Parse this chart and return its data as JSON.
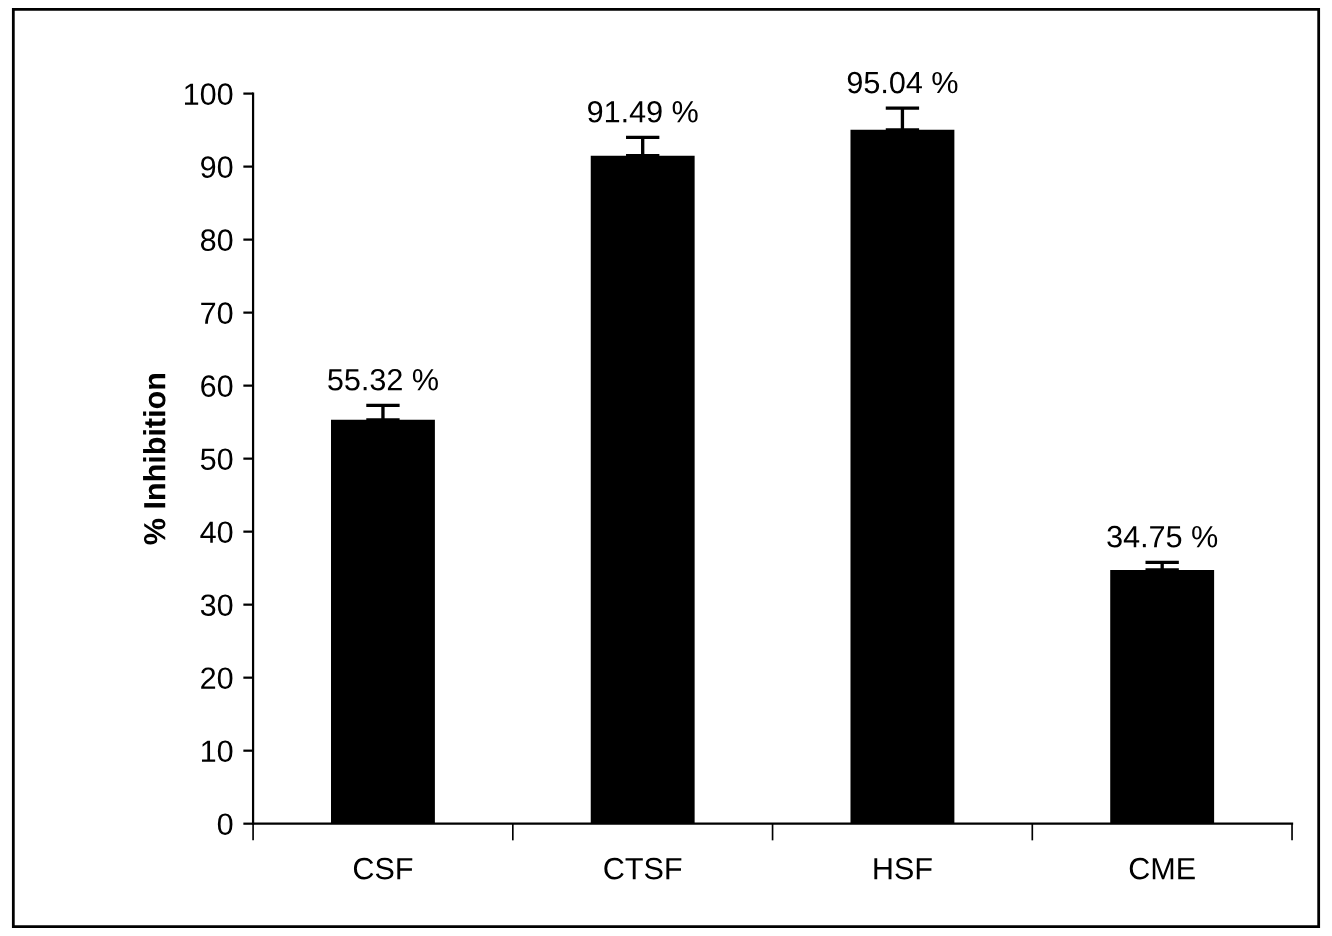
{
  "chart_data": {
    "type": "bar",
    "ylabel": "% Inhibition",
    "categories": [
      "CSF",
      "CTSF",
      "HSF",
      "CME"
    ],
    "values": [
      55.32,
      91.49,
      95.04,
      34.75
    ],
    "errors": [
      [
        55.32,
        57.3
      ],
      [
        91.49,
        94
      ],
      [
        95.04,
        98
      ],
      [
        34.75,
        35.8
      ]
    ],
    "value_labels": [
      "55.32 %",
      "91.49 %",
      "95.04 %",
      "34.75 %"
    ],
    "color": "#000000",
    "ylim": [
      0,
      100
    ],
    "yticks": [
      0,
      10,
      20,
      30,
      40,
      50,
      60,
      70,
      80,
      90,
      100
    ],
    "grid": false,
    "legend": false
  }
}
